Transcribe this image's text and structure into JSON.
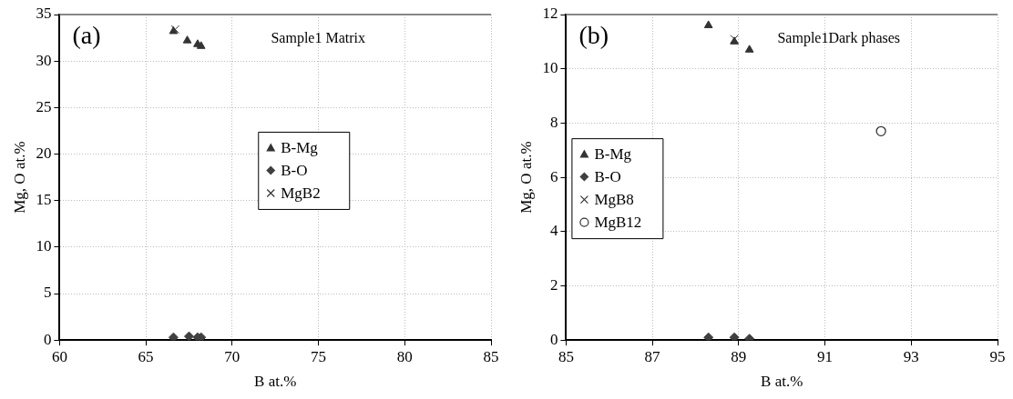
{
  "chart_data": [
    {
      "type": "scatter",
      "xlabel": "B at.%",
      "ylabel": "Mg, O at.%",
      "annotations": [
        "(a)",
        "Sample1 Matrix"
      ],
      "xlim": [
        60,
        85
      ],
      "xticks": [
        60,
        65,
        70,
        75,
        80,
        85
      ],
      "ylim": [
        0,
        35
      ],
      "yticks": [
        0,
        5,
        10,
        15,
        20,
        25,
        30,
        35
      ],
      "grid": true,
      "legend": "center",
      "series": [
        {
          "name": "B-Mg",
          "color": "#333333",
          "marker": "triangle",
          "x": [
            66.6,
            67.4,
            68.0,
            68.2
          ],
          "values": [
            33.2,
            32.2,
            31.8,
            31.6
          ]
        },
        {
          "name": "B-O",
          "color": "#404040",
          "marker": "diamond",
          "x": [
            66.6,
            67.5,
            68.0,
            68.2
          ],
          "values": [
            0.3,
            0.4,
            0.3,
            0.3
          ]
        },
        {
          "name": "MgB2",
          "color": "#333333",
          "marker": "cross",
          "x": [
            66.7
          ],
          "values": [
            33.4
          ]
        }
      ]
    },
    {
      "type": "scatter",
      "xlabel": "B at.%",
      "ylabel": "Mg, O at.%",
      "annotations": [
        "(b)",
        "Sample1Dark phases"
      ],
      "xlim": [
        85,
        95
      ],
      "xticks": [
        85,
        87,
        89,
        91,
        93,
        95
      ],
      "ylim": [
        0,
        12
      ],
      "yticks": [
        0,
        2,
        4,
        6,
        8,
        10,
        12
      ],
      "grid": true,
      "legend": "left",
      "series": [
        {
          "name": "B-Mg",
          "color": "#333333",
          "marker": "triangle",
          "x": [
            88.3,
            88.9,
            89.25
          ],
          "values": [
            11.6,
            11.0,
            10.7
          ]
        },
        {
          "name": "B-O",
          "color": "#404040",
          "marker": "diamond",
          "x": [
            88.3,
            88.9,
            89.25
          ],
          "values": [
            0.1,
            0.1,
            0.05
          ]
        },
        {
          "name": "MgB8",
          "color": "#333333",
          "marker": "cross",
          "x": [
            88.9
          ],
          "values": [
            11.1
          ]
        },
        {
          "name": "MgB12",
          "color": "#333333",
          "marker": "circle",
          "x": [
            92.3
          ],
          "values": [
            7.7
          ]
        }
      ]
    }
  ]
}
